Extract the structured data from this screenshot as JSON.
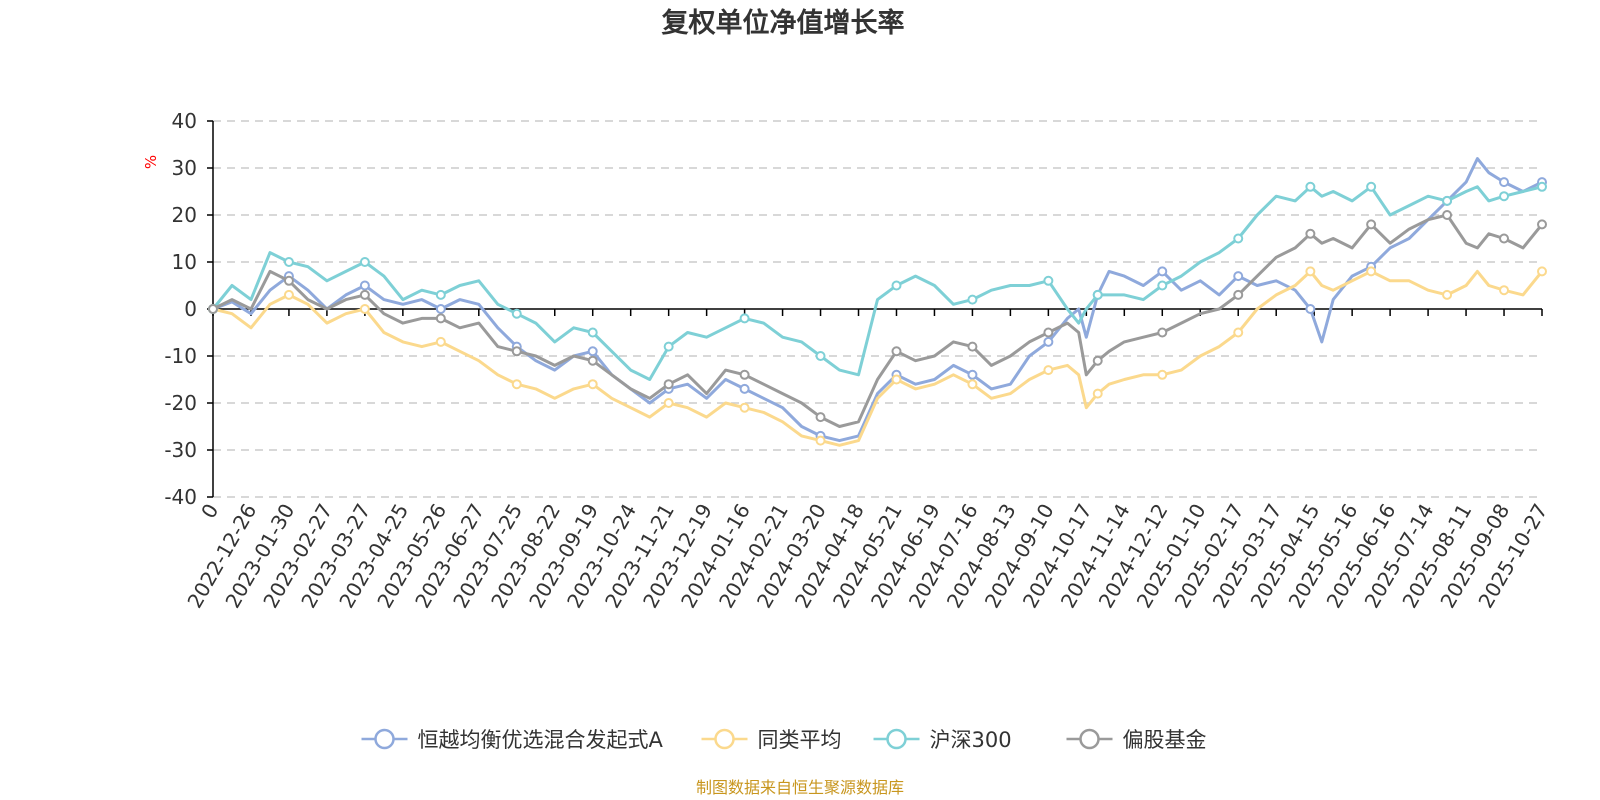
{
  "chart_data": {
    "type": "line",
    "title": "复权单位净值增长率",
    "ylabel": "%",
    "xlabel": "",
    "ylim": [
      -40,
      40
    ],
    "y_ticks": [
      "40",
      "30",
      "20",
      "10",
      "0",
      "-10",
      "-20",
      "-30",
      "-40"
    ],
    "x_ticks": [
      "0",
      "2022-12-26",
      "2023-01-30",
      "2023-02-27",
      "2023-03-27",
      "2023-04-25",
      "2023-05-26",
      "2023-06-27",
      "2023-07-25",
      "2023-08-22",
      "2023-09-19",
      "2023-10-24",
      "2023-11-21",
      "2023-12-19",
      "2024-01-16",
      "2024-02-21",
      "2024-03-20",
      "2024-04-18",
      "2024-05-21",
      "2024-06-19",
      "2024-07-16",
      "2024-08-13",
      "2024-09-10",
      "2024-10-17",
      "2024-11-14",
      "2024-12-12",
      "2025-01-10",
      "2025-02-17",
      "2025-03-17",
      "2025-04-15",
      "2025-05-16",
      "2025-06-16",
      "2025-07-14",
      "2025-08-11",
      "2025-09-08",
      "2025-10-27"
    ],
    "x_range": [
      0,
      35
    ],
    "series": [
      {
        "name": "恒越均衡优选混合发起式A",
        "color": "#8fa9dc",
        "x": [
          0,
          0.5,
          1,
          1.5,
          2,
          2.5,
          3,
          3.5,
          4,
          4.5,
          5,
          5.5,
          6,
          6.5,
          7,
          7.5,
          8,
          8.5,
          9,
          9.5,
          10,
          10.5,
          11,
          11.5,
          12,
          12.5,
          13,
          13.5,
          14,
          14.5,
          15,
          15.5,
          16,
          16.5,
          17,
          17.5,
          18,
          18.5,
          19,
          19.5,
          20,
          20.5,
          21,
          21.5,
          22,
          22.5,
          22.8,
          23,
          23.3,
          23.6,
          24,
          24.5,
          25,
          25.5,
          26,
          26.5,
          27,
          27.5,
          28,
          28.5,
          28.9,
          29.2,
          29.5,
          30,
          30.5,
          31,
          31.5,
          32,
          32.5,
          33,
          33.3,
          33.6,
          34,
          34.5,
          35
        ],
        "values": [
          0,
          1.5,
          -1,
          4,
          7,
          4,
          0,
          3,
          5,
          2,
          1,
          2,
          0,
          2,
          1,
          -4,
          -8,
          -11,
          -13,
          -10,
          -9,
          -14,
          -17,
          -20,
          -17,
          -16,
          -19,
          -15,
          -17,
          -19,
          -21,
          -25,
          -27,
          -28,
          -27,
          -18,
          -14,
          -16,
          -15,
          -12,
          -14,
          -17,
          -16,
          -10,
          -7,
          -2,
          0,
          -6,
          3,
          8,
          7,
          5,
          8,
          4,
          6,
          3,
          7,
          5,
          6,
          4,
          0,
          -7,
          2,
          7,
          9,
          13,
          15,
          19,
          23,
          27,
          32,
          29,
          27,
          25,
          27
        ]
      },
      {
        "name": "同类平均",
        "color": "#fbd98d",
        "x": [
          0,
          0.5,
          1,
          1.5,
          2,
          2.5,
          3,
          3.5,
          4,
          4.5,
          5,
          5.5,
          6,
          6.5,
          7,
          7.5,
          8,
          8.5,
          9,
          9.5,
          10,
          10.5,
          11,
          11.5,
          12,
          12.5,
          13,
          13.5,
          14,
          14.5,
          15,
          15.5,
          16,
          16.5,
          17,
          17.5,
          18,
          18.5,
          19,
          19.5,
          20,
          20.5,
          21,
          21.5,
          22,
          22.5,
          22.8,
          23,
          23.3,
          23.6,
          24,
          24.5,
          25,
          25.5,
          26,
          26.5,
          27,
          27.5,
          28,
          28.5,
          28.9,
          29.2,
          29.5,
          30,
          30.5,
          31,
          31.5,
          32,
          32.5,
          33,
          33.3,
          33.6,
          34,
          34.5,
          35
        ],
        "values": [
          0,
          -1,
          -4,
          1,
          3,
          1,
          -3,
          -1,
          0,
          -5,
          -7,
          -8,
          -7,
          -9,
          -11,
          -14,
          -16,
          -17,
          -19,
          -17,
          -16,
          -19,
          -21,
          -23,
          -20,
          -21,
          -23,
          -20,
          -21,
          -22,
          -24,
          -27,
          -28,
          -29,
          -28,
          -19,
          -15,
          -17,
          -16,
          -14,
          -16,
          -19,
          -18,
          -15,
          -13,
          -12,
          -14,
          -21,
          -18,
          -16,
          -15,
          -14,
          -14,
          -13,
          -10,
          -8,
          -5,
          0,
          3,
          5,
          8,
          5,
          4,
          6,
          8,
          6,
          6,
          4,
          3,
          5,
          8,
          5,
          4,
          3,
          8
        ]
      },
      {
        "name": "沪深300",
        "color": "#7ed0d6",
        "x": [
          0,
          0.5,
          1,
          1.5,
          2,
          2.5,
          3,
          3.5,
          4,
          4.5,
          5,
          5.5,
          6,
          6.5,
          7,
          7.5,
          8,
          8.5,
          9,
          9.5,
          10,
          10.5,
          11,
          11.5,
          12,
          12.5,
          13,
          13.5,
          14,
          14.5,
          15,
          15.5,
          16,
          16.5,
          17,
          17.5,
          18,
          18.5,
          19,
          19.5,
          20,
          20.5,
          21,
          21.5,
          22,
          22.5,
          22.8,
          23,
          23.3,
          23.6,
          24,
          24.5,
          25,
          25.5,
          26,
          26.5,
          27,
          27.5,
          28,
          28.5,
          28.9,
          29.2,
          29.5,
          30,
          30.5,
          31,
          31.5,
          32,
          32.5,
          33,
          33.3,
          33.6,
          34,
          34.5,
          35
        ],
        "values": [
          0,
          5,
          2,
          12,
          10,
          9,
          6,
          8,
          10,
          7,
          2,
          4,
          3,
          5,
          6,
          1,
          -1,
          -3,
          -7,
          -4,
          -5,
          -9,
          -13,
          -15,
          -8,
          -5,
          -6,
          -4,
          -2,
          -3,
          -6,
          -7,
          -10,
          -13,
          -14,
          2,
          5,
          7,
          5,
          1,
          2,
          4,
          5,
          5,
          6,
          0,
          -3,
          0,
          3,
          3,
          3,
          2,
          5,
          7,
          10,
          12,
          15,
          20,
          24,
          23,
          26,
          24,
          25,
          23,
          26,
          20,
          22,
          24,
          23,
          25,
          26,
          23,
          24,
          25,
          26
        ]
      },
      {
        "name": "偏股基金",
        "color": "#9a9a9a",
        "x": [
          0,
          0.5,
          1,
          1.5,
          2,
          2.5,
          3,
          3.5,
          4,
          4.5,
          5,
          5.5,
          6,
          6.5,
          7,
          7.5,
          8,
          8.5,
          9,
          9.5,
          10,
          10.5,
          11,
          11.5,
          12,
          12.5,
          13,
          13.5,
          14,
          14.5,
          15,
          15.5,
          16,
          16.5,
          17,
          17.5,
          18,
          18.5,
          19,
          19.5,
          20,
          20.5,
          21,
          21.5,
          22,
          22.5,
          22.8,
          23,
          23.3,
          23.6,
          24,
          24.5,
          25,
          25.5,
          26,
          26.5,
          27,
          27.5,
          28,
          28.5,
          28.9,
          29.2,
          29.5,
          30,
          30.5,
          31,
          31.5,
          32,
          32.5,
          33,
          33.3,
          33.6,
          34,
          34.5,
          35
        ],
        "values": [
          0,
          2,
          0,
          8,
          6,
          2,
          0,
          2,
          3,
          -1,
          -3,
          -2,
          -2,
          -4,
          -3,
          -8,
          -9,
          -10,
          -12,
          -10,
          -11,
          -14,
          -17,
          -19,
          -16,
          -14,
          -18,
          -13,
          -14,
          -16,
          -18,
          -20,
          -23,
          -25,
          -24,
          -15,
          -9,
          -11,
          -10,
          -7,
          -8,
          -12,
          -10,
          -7,
          -5,
          -3,
          -5,
          -14,
          -11,
          -9,
          -7,
          -6,
          -5,
          -3,
          -1,
          0,
          3,
          7,
          11,
          13,
          16,
          14,
          15,
          13,
          18,
          14,
          17,
          19,
          20,
          14,
          13,
          16,
          15,
          13,
          18
        ]
      }
    ],
    "legend": [
      "恒越均衡优选混合发起式A",
      "同类平均",
      "沪深300",
      "偏股基金"
    ],
    "legend_position": "bottom",
    "grid": true
  },
  "source_note": "制图数据来自恒生聚源数据库"
}
